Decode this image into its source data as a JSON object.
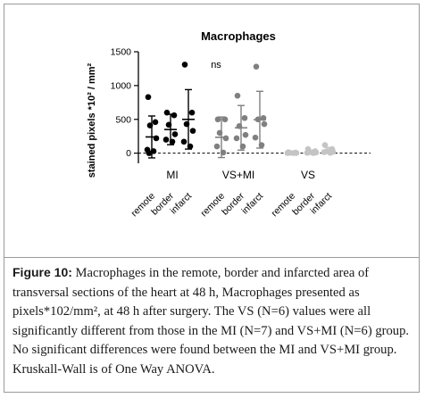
{
  "figure": {
    "caption_label": "Figure 10:",
    "caption_text": " Macrophages in the remote, border and infarcted area of transversal sections of the heart at 48 h, Macrophages presented as pixels*102/mm², at 48 h after surgery. The VS (N=6) values were all significantly different from those in the MI (N=7) and VS+MI (N=6) group. No significant differences were found between the MI and VS+MI group. Kruskall-Wall is of One Way ANOVA."
  },
  "chart_data": {
    "type": "scatter",
    "title": "Macrophages",
    "ylabel": "stained pixels *10² / mm²",
    "ylim": [
      -150,
      1500
    ],
    "yticks": [
      "0",
      "500",
      "1000",
      "1500"
    ],
    "ytick_values": [
      0,
      500,
      1000,
      1500
    ],
    "reference_line_y": 0,
    "annotation": "ns",
    "categories": [
      "remote",
      "border",
      "infarct",
      "remote",
      "border",
      "infarct",
      "remote",
      "border",
      "infarct"
    ],
    "groups": [
      {
        "name": "MI",
        "color": "#000000",
        "cats": [
          0,
          1,
          2
        ]
      },
      {
        "name": "VS+MI",
        "color": "#808080",
        "cats": [
          3,
          4,
          5
        ]
      },
      {
        "name": "VS",
        "color": "#c4c4c4",
        "cats": [
          6,
          7,
          8
        ]
      }
    ],
    "series": [
      {
        "group": "MI",
        "category": "remote",
        "points": [
          830,
          460,
          410,
          220,
          50,
          30,
          0
        ],
        "mean": 240,
        "sd": 310
      },
      {
        "group": "MI",
        "category": "border",
        "points": [
          600,
          560,
          420,
          280,
          200,
          170
        ],
        "mean": 350,
        "sd": 225
      },
      {
        "group": "MI",
        "category": "infarct",
        "points": [
          1310,
          600,
          430,
          330,
          170,
          100
        ],
        "mean": 500,
        "sd": 440
      },
      {
        "group": "VS+MI",
        "category": "remote",
        "points": [
          500,
          500,
          300,
          220,
          100,
          10
        ],
        "mean": 235,
        "sd": 300
      },
      {
        "group": "VS+MI",
        "category": "border",
        "points": [
          850,
          520,
          400,
          270,
          220,
          100
        ],
        "mean": 375,
        "sd": 330
      },
      {
        "group": "VS+MI",
        "category": "infarct",
        "points": [
          1280,
          520,
          500,
          430,
          230,
          120
        ],
        "mean": 495,
        "sd": 420
      },
      {
        "group": "VS",
        "category": "remote",
        "points": [
          15,
          8,
          5,
          3,
          2,
          1
        ],
        "mean": 6,
        "sd": 5
      },
      {
        "group": "VS",
        "category": "border",
        "points": [
          60,
          30,
          15,
          10,
          5,
          2
        ],
        "mean": 20,
        "sd": 25
      },
      {
        "group": "VS",
        "category": "infarct",
        "points": [
          120,
          60,
          30,
          20,
          15,
          5
        ],
        "mean": 40,
        "sd": 45
      }
    ]
  }
}
